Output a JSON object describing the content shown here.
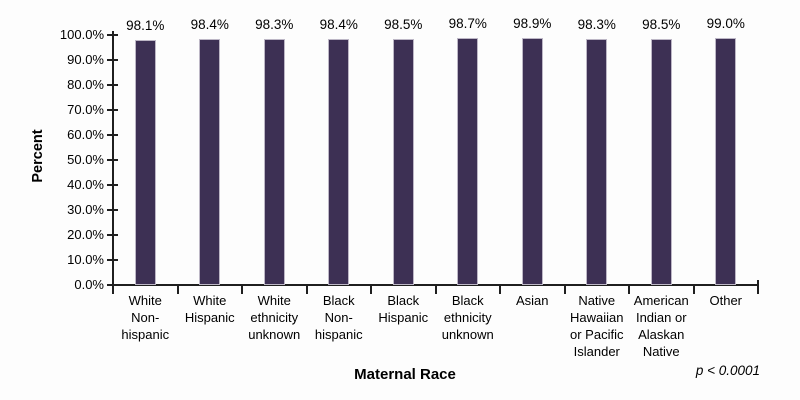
{
  "chart_data": {
    "type": "bar",
    "title": "",
    "xlabel": "Maternal Race",
    "ylabel": "Percent",
    "annotation": "p < 0.0001",
    "categories": [
      "White Non-hispanic",
      "White Hispanic",
      "White ethnicity unknown",
      "Black Non-hispanic",
      "Black Hispanic",
      "Black ethnicity unknown",
      "Asian",
      "Native Hawaiian or Pacific Islander",
      "American Indian or Alaskan Native",
      "Other"
    ],
    "category_label_lines": [
      [
        "White",
        "Non-",
        "hispanic"
      ],
      [
        "White",
        "Hispanic"
      ],
      [
        "White",
        "ethnicity",
        "unknown"
      ],
      [
        "Black",
        "Non-",
        "hispanic"
      ],
      [
        "Black",
        "Hispanic"
      ],
      [
        "Black",
        "ethnicity",
        "unknown"
      ],
      [
        "Asian"
      ],
      [
        "Native",
        "Hawaiian",
        "or Pacific",
        "Islander"
      ],
      [
        "American",
        "Indian or",
        "Alaskan",
        "Native"
      ],
      [
        "Other"
      ]
    ],
    "values": [
      98.1,
      98.4,
      98.3,
      98.4,
      98.5,
      98.7,
      98.9,
      98.3,
      98.5,
      99.0
    ],
    "value_labels": [
      "98.1%",
      "98.4%",
      "98.3%",
      "98.4%",
      "98.5%",
      "98.7%",
      "98.9%",
      "98.3%",
      "98.5%",
      "99.0%"
    ],
    "ylim": [
      0,
      100
    ],
    "ytick_step": 10,
    "ytick_labels": [
      "100.0%",
      "90.0%",
      "80.0%",
      "70.0%",
      "60.0%",
      "50.0%",
      "40.0%",
      "30.0%",
      "20.0%",
      "10.0%",
      "0.0%"
    ],
    "grid": false,
    "legend": "none",
    "bar_color": "#3d3054",
    "axis_color": "#1f1f1f",
    "text_color": "#000000"
  }
}
